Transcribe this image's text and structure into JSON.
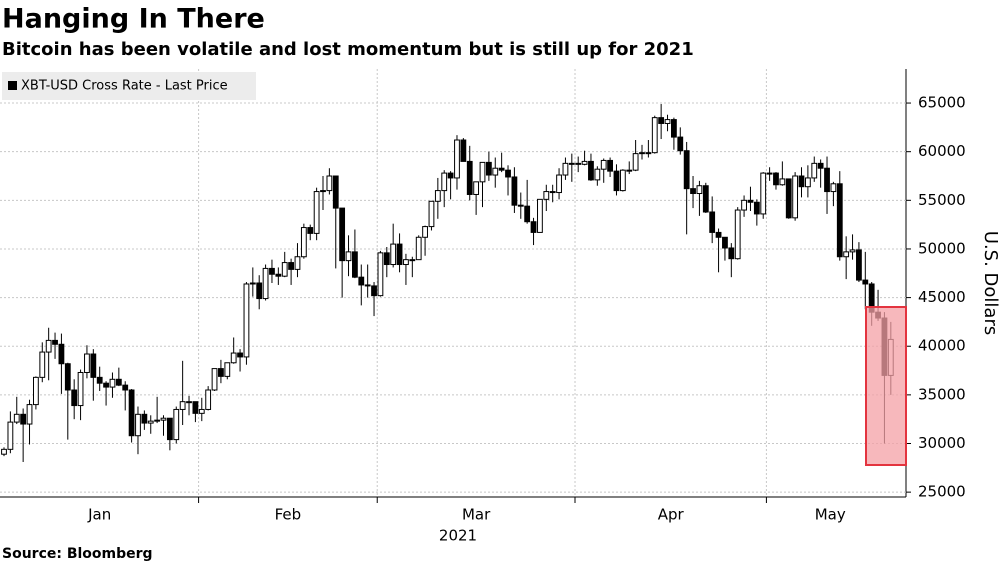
{
  "chart_data": {
    "type": "candlestick",
    "title": "Hanging In There",
    "subtitle": "Bitcoin has been volatile and lost momentum but is still up for 2021",
    "source": "Source: Bloomberg",
    "xlabel": "2021",
    "ylabel": "U.S. Dollars",
    "categories": [
      "Jan",
      "Jan",
      "Jan",
      "Jan",
      "Jan",
      "Jan",
      "Jan",
      "Jan",
      "Jan",
      "Jan",
      "Jan",
      "Jan",
      "Jan",
      "Jan",
      "Jan",
      "Jan",
      "Jan",
      "Jan",
      "Jan",
      "Jan",
      "Jan",
      "Jan",
      "Jan",
      "Jan",
      "Jan",
      "Jan",
      "Jan",
      "Jan",
      "Jan",
      "Jan",
      "Jan",
      "Feb",
      "Feb",
      "Feb",
      "Feb",
      "Feb",
      "Feb",
      "Feb",
      "Feb",
      "Feb",
      "Feb",
      "Feb",
      "Feb",
      "Feb",
      "Feb",
      "Feb",
      "Feb",
      "Feb",
      "Feb",
      "Feb",
      "Feb",
      "Feb",
      "Feb",
      "Feb",
      "Feb",
      "Feb",
      "Feb",
      "Feb",
      "Feb",
      "Mar",
      "Mar",
      "Mar",
      "Mar",
      "Mar",
      "Mar",
      "Mar",
      "Mar",
      "Mar",
      "Mar",
      "Mar",
      "Mar",
      "Mar",
      "Mar",
      "Mar",
      "Mar",
      "Mar",
      "Mar",
      "Mar",
      "Mar",
      "Mar",
      "Mar",
      "Mar",
      "Mar",
      "Mar",
      "Mar",
      "Mar",
      "Mar",
      "Mar",
      "Mar",
      "Mar",
      "Apr",
      "Apr",
      "Apr",
      "Apr",
      "Apr",
      "Apr",
      "Apr",
      "Apr",
      "Apr",
      "Apr",
      "Apr",
      "Apr",
      "Apr",
      "Apr",
      "Apr",
      "Apr",
      "Apr",
      "Apr",
      "Apr",
      "Apr",
      "Apr",
      "Apr",
      "Apr",
      "Apr",
      "Apr",
      "Apr",
      "Apr",
      "Apr",
      "Apr",
      "Apr",
      "May",
      "May",
      "May",
      "May",
      "May",
      "May",
      "May",
      "May",
      "May",
      "May",
      "May",
      "May",
      "May",
      "May",
      "May",
      "May",
      "May",
      "May",
      "May",
      "May"
    ],
    "series": [
      {
        "name": "XBT-USD Cross Rate - Last Price",
        "up_color": "#ffffff",
        "down_color": "#000000",
        "open": [
          28900,
          29400,
          32200,
          33000,
          32000,
          34000,
          36800,
          39400,
          40600,
          40200,
          38200,
          35500,
          33900,
          37300,
          39200,
          36800,
          36200,
          35800,
          36600,
          36000,
          35500,
          30800,
          33000,
          32100,
          32300,
          32400,
          32600,
          30400,
          33500,
          34300,
          34300,
          33100,
          33500,
          35500,
          37700,
          36900,
          38300,
          39300,
          38900,
          46400,
          46500,
          44900,
          48000,
          47400,
          47200,
          48600,
          47900,
          49200,
          52200,
          51600,
          55900,
          56000,
          57500,
          54200,
          48800,
          49700,
          47100,
          46300,
          46200,
          45200,
          49600,
          48400,
          50500,
          48400,
          48900,
          48900,
          51200,
          52300,
          54900,
          56000,
          57800,
          57300,
          61200,
          59000,
          55600,
          56900,
          58900,
          57600,
          58300,
          58100,
          57400,
          54500,
          54400,
          52800,
          51700,
          55100,
          55900,
          55800,
          57600,
          58800,
          58800,
          58700,
          59000,
          57100,
          58200,
          59100,
          58000,
          56000,
          58100,
          58100,
          59800,
          59900,
          59900,
          63500,
          62900,
          63300,
          61500,
          60100,
          56200,
          55700,
          56500,
          53800,
          51700,
          51200,
          50100,
          49000,
          54000,
          55000,
          54800,
          53600,
          57800,
          57800,
          56600,
          57200,
          53200,
          57500,
          56400,
          57300,
          58800,
          58300,
          55900,
          56700,
          49200,
          49700,
          49900,
          46800,
          46400,
          43500,
          42900,
          37000
        ],
        "high": [
          29600,
          33300,
          34800,
          33600,
          34500,
          36900,
          40400,
          41900,
          41400,
          41300,
          38300,
          36600,
          37600,
          40100,
          39700,
          37900,
          36400,
          37300,
          37800,
          36400,
          35600,
          33800,
          33400,
          32900,
          34800,
          32900,
          32600,
          33800,
          38500,
          34900,
          34300,
          34700,
          35900,
          37700,
          38600,
          38300,
          40900,
          39700,
          46600,
          48100,
          47300,
          48400,
          48900,
          48100,
          49700,
          49000,
          50600,
          52600,
          52500,
          56300,
          57500,
          58300,
          57500,
          54200,
          51400,
          52000,
          48400,
          48400,
          46600,
          49800,
          50200,
          52600,
          51600,
          49500,
          49200,
          51400,
          52400,
          54900,
          57300,
          58100,
          58000,
          61700,
          61400,
          60600,
          56900,
          58900,
          60000,
          59400,
          59900,
          58600,
          58400,
          55800,
          57100,
          53200,
          55100,
          56600,
          56600,
          58300,
          59400,
          59800,
          59500,
          60100,
          59800,
          58500,
          59300,
          59400,
          58700,
          58200,
          59000,
          61200,
          60700,
          61200,
          63700,
          64900,
          63800,
          63500,
          62500,
          61000,
          57500,
          57000,
          56800,
          55400,
          52100,
          51200,
          50600,
          54300,
          55500,
          56400,
          55100,
          57900,
          58400,
          57900,
          59000,
          57200,
          57900,
          58400,
          58600,
          59500,
          59200,
          59500,
          56900,
          58000,
          51300,
          51500,
          50700,
          49700,
          46600,
          45800,
          43500,
          42500
        ],
        "low": [
          28700,
          29000,
          32000,
          28100,
          29900,
          33500,
          36300,
          36500,
          38700,
          35100,
          30400,
          32500,
          32400,
          36700,
          34400,
          35400,
          33900,
          34700,
          35900,
          33400,
          30100,
          28900,
          31400,
          31000,
          32100,
          30800,
          29300,
          30000,
          31900,
          32900,
          32200,
          32300,
          33400,
          35400,
          36200,
          36600,
          38200,
          37400,
          38100,
          45100,
          43800,
          44700,
          46500,
          46300,
          47100,
          46300,
          47100,
          49000,
          50900,
          50900,
          54000,
          55600,
          48000,
          45000,
          47200,
          47000,
          44200,
          45000,
          43100,
          45100,
          47100,
          48100,
          47600,
          46300,
          47100,
          48900,
          49300,
          51900,
          53100,
          54300,
          55100,
          56100,
          59000,
          55000,
          53500,
          54300,
          57000,
          56300,
          57900,
          55500,
          53700,
          53100,
          52600,
          50400,
          51700,
          53900,
          54800,
          55100,
          57100,
          56900,
          57900,
          58600,
          57000,
          56500,
          56800,
          57400,
          55500,
          55900,
          57700,
          58000,
          59200,
          59400,
          59800,
          61300,
          62100,
          60200,
          59700,
          51500,
          54200,
          53400,
          53700,
          50600,
          47600,
          48800,
          47100,
          48900,
          53300,
          53900,
          52400,
          53100,
          57000,
          56100,
          56500,
          53100,
          52900,
          55300,
          55300,
          56900,
          56300,
          53600,
          54400,
          48800,
          46900,
          48900,
          46600,
          43800,
          42100,
          42600,
          30000,
          35000
        ],
        "close": [
          29400,
          32200,
          33000,
          32000,
          34000,
          36800,
          39400,
          40600,
          40200,
          38200,
          35500,
          33900,
          37300,
          39200,
          36800,
          36200,
          35800,
          36600,
          36000,
          35500,
          30800,
          33000,
          32100,
          32300,
          32400,
          32600,
          30400,
          33500,
          34300,
          34300,
          33100,
          33500,
          35500,
          37700,
          36900,
          38300,
          39300,
          38900,
          46400,
          46500,
          44900,
          48000,
          47400,
          47200,
          48600,
          47900,
          49200,
          52200,
          51600,
          55900,
          56000,
          57500,
          54200,
          48800,
          49700,
          47100,
          46300,
          46200,
          45200,
          49600,
          48400,
          50500,
          48400,
          48900,
          48900,
          51200,
          52300,
          54900,
          56000,
          57800,
          57300,
          61200,
          59000,
          55600,
          56900,
          58900,
          57600,
          58300,
          58100,
          57400,
          54500,
          54400,
          52800,
          51700,
          55100,
          55900,
          55800,
          57600,
          58800,
          58800,
          58700,
          59000,
          57100,
          58200,
          59100,
          58000,
          56000,
          58100,
          58100,
          59800,
          59900,
          59900,
          63500,
          62900,
          63300,
          61500,
          60100,
          56200,
          55700,
          56500,
          53800,
          51700,
          51200,
          50100,
          49000,
          54000,
          55000,
          54800,
          53600,
          57800,
          57800,
          56600,
          57200,
          53200,
          57500,
          56400,
          57300,
          58800,
          58300,
          55900,
          56700,
          49200,
          49700,
          49900,
          46800,
          46400,
          43500,
          42900,
          37000,
          40700
        ]
      }
    ],
    "ylim": [
      24500,
      68500
    ],
    "yticks": [
      25000,
      30000,
      35000,
      40000,
      45000,
      50000,
      55000,
      60000,
      65000
    ],
    "grid": true
  }
}
